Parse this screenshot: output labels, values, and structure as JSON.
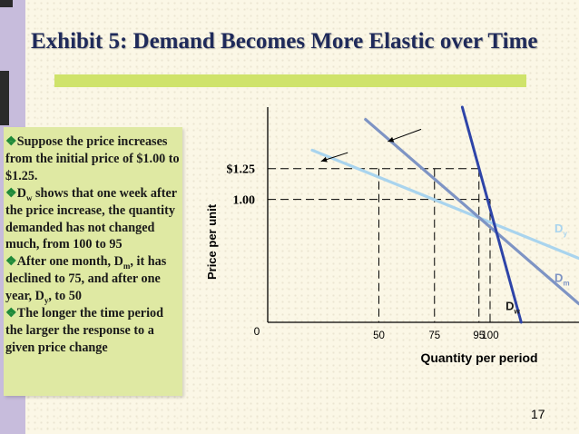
{
  "slide": {
    "title": "Exhibit 5: Demand Becomes More Elastic over Time",
    "page_number": "17",
    "bullets": [
      {
        "parts": [
          {
            "t": "Suppose the price increases from the initial price of $1.00 to $1.25."
          }
        ]
      },
      {
        "parts": [
          {
            "t": "D"
          },
          {
            "sub": "w"
          },
          {
            "t": " shows that one week after the price increase, the quantity demanded has not changed much, from 100 to 95"
          }
        ]
      },
      {
        "parts": [
          {
            "t": "After one month, D"
          },
          {
            "sub": "m"
          },
          {
            "t": ", it has declined to 75, and after one year, D"
          },
          {
            "sub": "y"
          },
          {
            "t": ", to 50"
          }
        ]
      },
      {
        "parts": [
          {
            "t": "The longer the time period the larger the response to a given price change"
          }
        ]
      }
    ]
  },
  "chart_data": {
    "type": "line",
    "title": "",
    "xlabel": "Quantity per  period",
    "ylabel": "Price per unit",
    "origin_label": "0",
    "xlim": [
      0,
      140
    ],
    "ylim": [
      0,
      1.75
    ],
    "x_ticks": [
      {
        "value": 50,
        "label": "50"
      },
      {
        "value": 75,
        "label": "75"
      },
      {
        "value": 95,
        "label": "95"
      },
      {
        "value": 100,
        "label": "100"
      }
    ],
    "y_ticks": [
      {
        "value": 1.25,
        "label": "$1.25"
      },
      {
        "value": 1.0,
        "label": "1.00"
      }
    ],
    "series": [
      {
        "name": "D",
        "sub": "w",
        "color": "#2e44a8",
        "points": [
          [
            87.5,
            1.75
          ],
          [
            114,
            0
          ]
        ]
      },
      {
        "name": "D",
        "sub": "m",
        "color": "#7e94c4",
        "points": [
          [
            44,
            1.65
          ],
          [
            140,
            0.15
          ]
        ]
      },
      {
        "name": "D",
        "sub": "y",
        "color": "#a9d4ee",
        "points": [
          [
            20,
            1.4
          ],
          [
            140,
            0.52
          ]
        ]
      }
    ],
    "reference_levels": [
      {
        "price": 1.25,
        "quantities": [
          50,
          75,
          95
        ]
      },
      {
        "price": 1.0,
        "quantities": [
          100
        ]
      }
    ],
    "arrows": [
      {
        "from": [
          69,
          1.57
        ],
        "to": [
          54,
          1.47
        ]
      },
      {
        "from": [
          36,
          1.38
        ],
        "to": [
          24,
          1.31
        ]
      }
    ],
    "grid": false,
    "legend": "labels at line ends"
  }
}
